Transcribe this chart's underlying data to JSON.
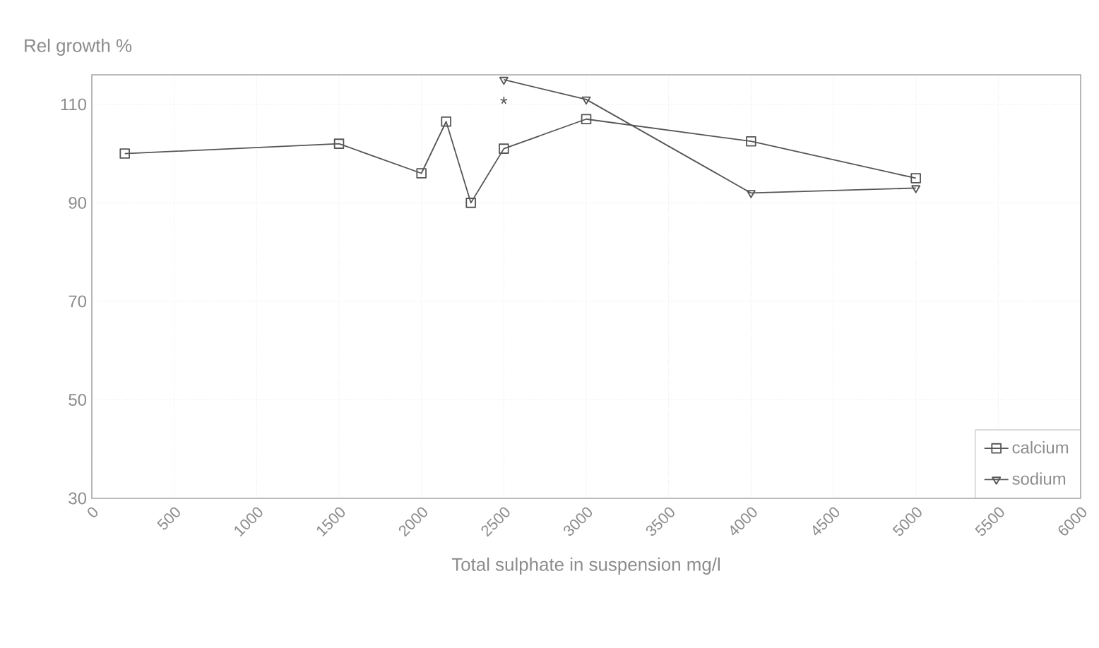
{
  "chart_data": {
    "type": "line",
    "xlabel": "Total sulphate in suspension mg/l",
    "ylabel": "Rel growth %",
    "series": [
      {
        "name": "calcium",
        "color": "#555555",
        "marker": "square",
        "x": [
          200,
          1500,
          2000,
          2150,
          2300,
          2500,
          3000,
          4000,
          5000
        ],
        "values": [
          100,
          102,
          96,
          106.5,
          90,
          101,
          107,
          102.5,
          95
        ]
      },
      {
        "name": "sodium",
        "color": "#555555",
        "marker": "triangle",
        "x": [
          2500,
          3000,
          4000,
          5000
        ],
        "values": [
          115,
          111,
          92,
          93
        ]
      }
    ],
    "annotations": [
      "*"
    ],
    "xlim": [
      0,
      6000
    ],
    "xticks": [
      0,
      500,
      1000,
      1500,
      2000,
      2500,
      3000,
      3500,
      4000,
      4500,
      5000,
      5500,
      6000
    ],
    "ylim": [
      30,
      116
    ],
    "yticks": [
      30,
      50,
      70,
      90,
      110
    ],
    "grid": true,
    "legend": "bottom right",
    "line_style": "solid"
  }
}
